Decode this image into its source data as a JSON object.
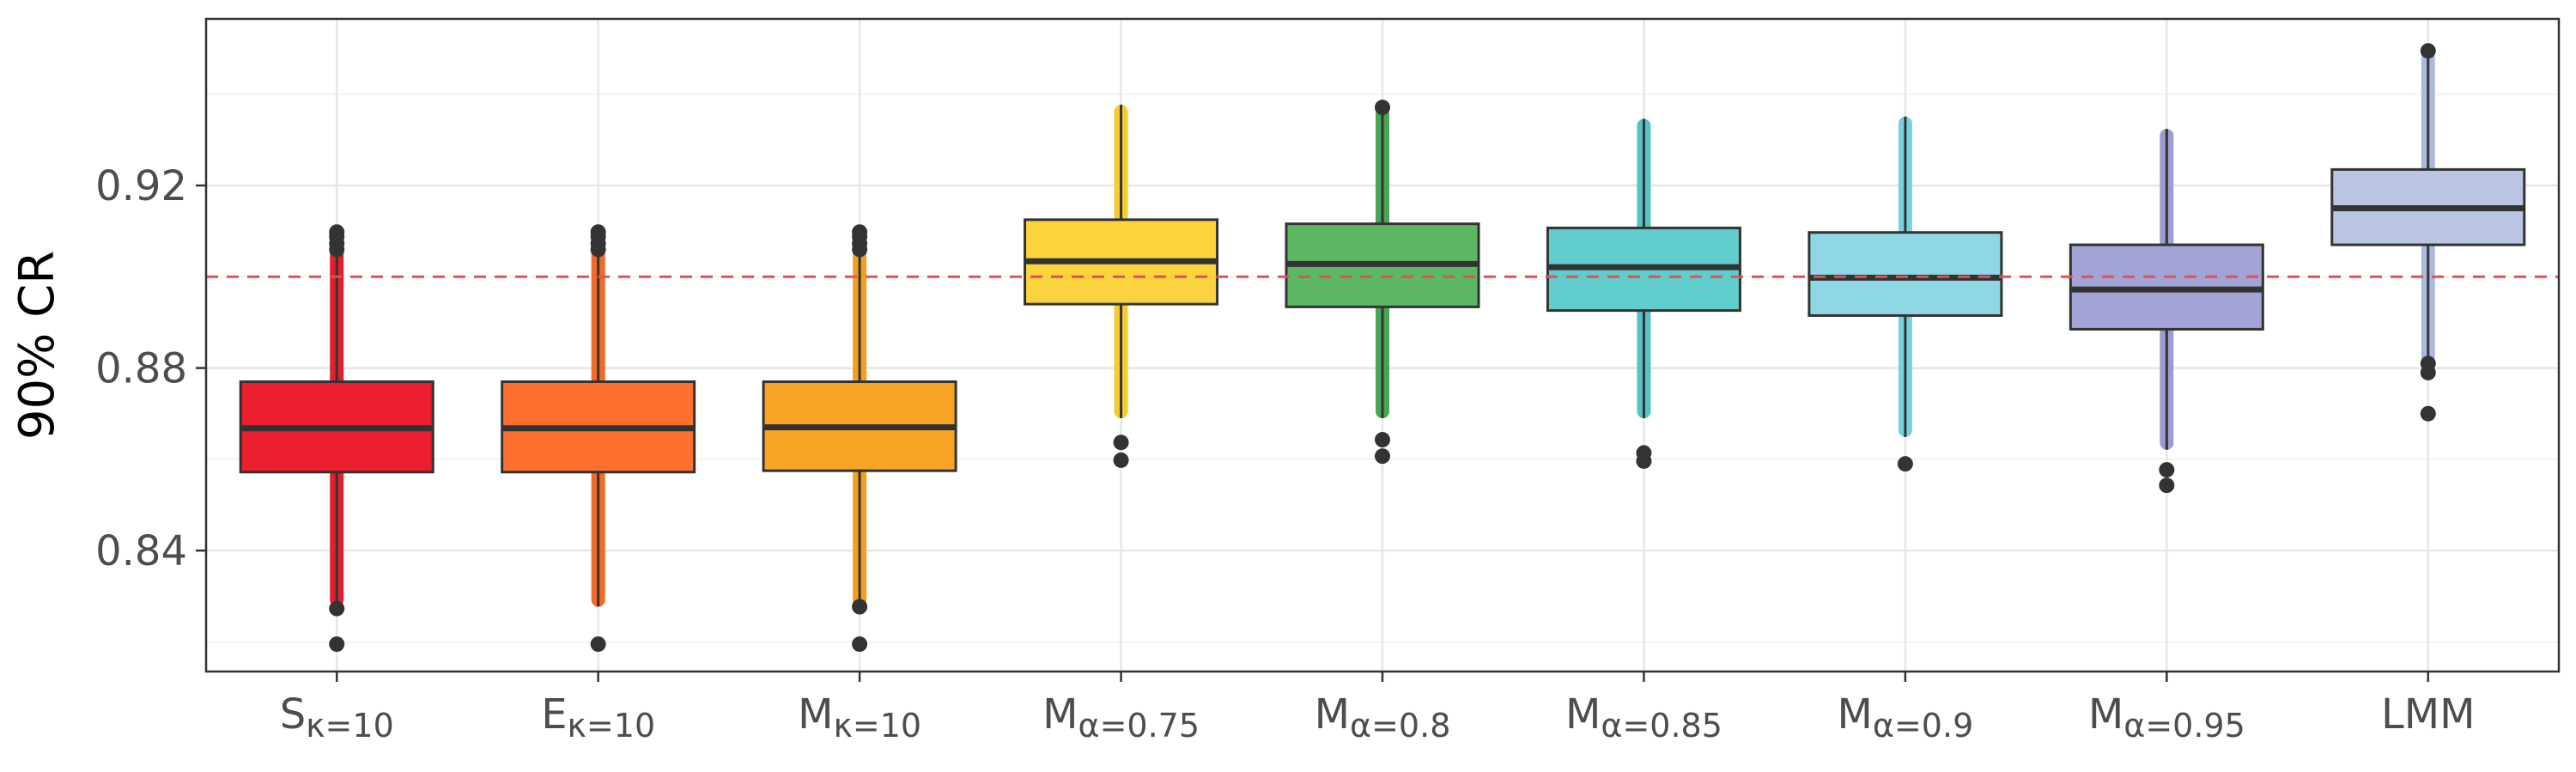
{
  "chart_data": {
    "type": "boxplot",
    "ylabel": "90% CR",
    "ylim": [
      0.8135,
      0.9565
    ],
    "yticks": [
      0.84,
      0.88,
      0.92
    ],
    "ytick_labels": [
      "0.84",
      "0.88",
      "0.92"
    ],
    "grid": true,
    "reference_line": {
      "y": 0.9,
      "color": "#d9545a",
      "style": "dashed"
    },
    "categories": [
      {
        "main": "S",
        "sub": "κ=10"
      },
      {
        "main": "E",
        "sub": "κ=10"
      },
      {
        "main": "M",
        "sub": "κ=10"
      },
      {
        "main": "M",
        "sub": "α=0.75"
      },
      {
        "main": "M",
        "sub": "α=0.8"
      },
      {
        "main": "M",
        "sub": "α=0.85"
      },
      {
        "main": "M",
        "sub": "α=0.9"
      },
      {
        "main": "M",
        "sub": "α=0.95"
      },
      {
        "main": "LMM",
        "sub": ""
      }
    ],
    "boxes": [
      {
        "q1": 0.8572,
        "median": 0.8668,
        "q3": 0.877,
        "whisker_low": 0.8277,
        "whisker_high": 0.9072,
        "outliers": [
          0.8195,
          0.8273,
          0.906,
          0.9073,
          0.9088,
          0.9098
        ],
        "fill": "#ec1f2f",
        "strip": "#e0202e"
      },
      {
        "q1": 0.8572,
        "median": 0.8668,
        "q3": 0.877,
        "whisker_low": 0.8277,
        "whisker_high": 0.9072,
        "outliers": [
          0.8195,
          0.906,
          0.9073,
          0.9088,
          0.9098
        ],
        "fill": "#fd7130",
        "strip": "#f26a26"
      },
      {
        "q1": 0.8575,
        "median": 0.867,
        "q3": 0.877,
        "whisker_low": 0.8277,
        "whisker_high": 0.9072,
        "outliers": [
          0.8195,
          0.8277,
          0.906,
          0.9073,
          0.9088,
          0.9098
        ],
        "fill": "#f8a526",
        "strip": "#f3a021"
      },
      {
        "q1": 0.894,
        "median": 0.9034,
        "q3": 0.9125,
        "whisker_low": 0.869,
        "whisker_high": 0.9377,
        "outliers": [
          0.8598,
          0.8637
        ],
        "fill": "#fbd33c",
        "strip": "#f7cd2e"
      },
      {
        "q1": 0.8934,
        "median": 0.9028,
        "q3": 0.9116,
        "whisker_low": 0.869,
        "whisker_high": 0.9371,
        "outliers": [
          0.8607,
          0.8643,
          0.9371
        ],
        "fill": "#5cb865",
        "strip": "#48a553"
      },
      {
        "q1": 0.8926,
        "median": 0.9021,
        "q3": 0.9107,
        "whisker_low": 0.869,
        "whisker_high": 0.9346,
        "outliers": [
          0.8596,
          0.8614
        ],
        "fill": "#60cdcc",
        "strip": "#54c3c4"
      },
      {
        "q1": 0.8915,
        "median": 0.8998,
        "q3": 0.9097,
        "whisker_low": 0.8649,
        "whisker_high": 0.9351,
        "outliers": [
          0.859
        ],
        "fill": "#8ed8e6",
        "strip": "#79d0e0"
      },
      {
        "q1": 0.8885,
        "median": 0.8972,
        "q3": 0.907,
        "whisker_low": 0.8621,
        "whisker_high": 0.9324,
        "outliers": [
          0.8543,
          0.8577
        ],
        "fill": "#a3a4d6",
        "strip": "#9b9ccf"
      },
      {
        "q1": 0.907,
        "median": 0.915,
        "q3": 0.9235,
        "whisker_low": 0.881,
        "whisker_high": 0.9495,
        "outliers": [
          0.87,
          0.879,
          0.881,
          0.9495
        ],
        "fill": "#bac5e4",
        "strip": "#aab9dd"
      }
    ]
  }
}
